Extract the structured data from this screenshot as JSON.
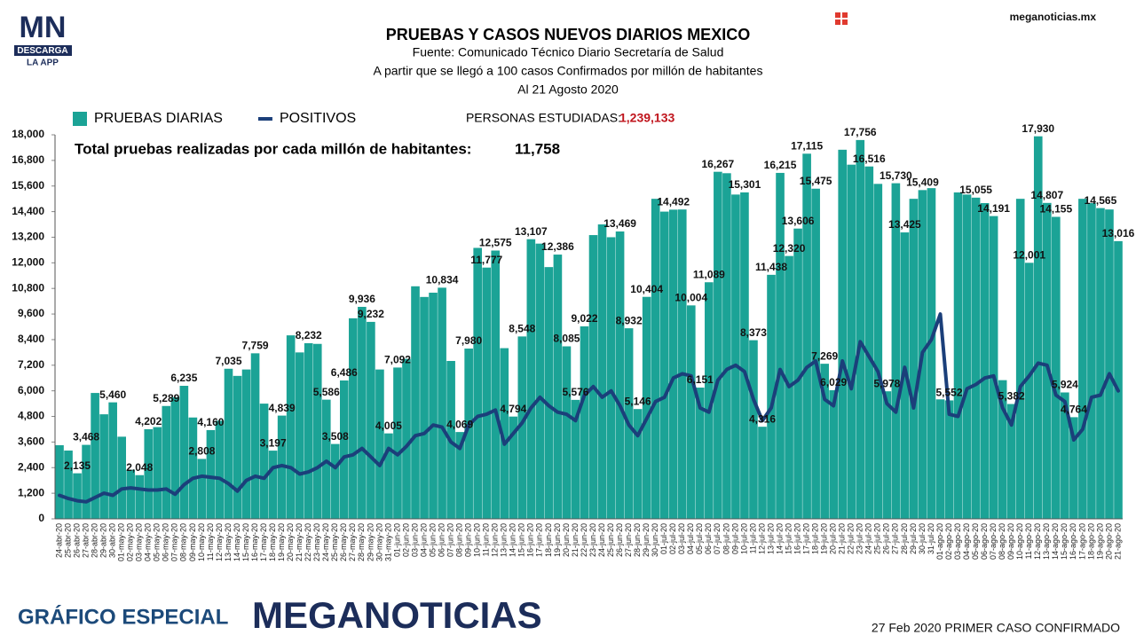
{
  "header": {
    "logo": "MN",
    "logo_sub": "DESCARGA",
    "logo_app": "LA APP",
    "site": "meganoticias.mx"
  },
  "footer": {
    "left": "GRÁFICO ESPECIAL",
    "brand": "MEGANOTICIAS",
    "note": "27 Feb 2020 PRIMER CASO CONFIRMADO"
  },
  "chart_data": {
    "type": "bar",
    "title": "PRUEBAS Y CASOS NUEVOS DIARIOS MEXICO",
    "subtitle": [
      "Fuente: Comunicado Técnico Diario Secretaría de Salud",
      "A partir que se llegó a 100 casos Confirmados por millón de habitantes",
      "Al 21 Agosto 2020"
    ],
    "annotations": {
      "studied_label": "PERSONAS ESTUDIADAS:",
      "studied_value": "1,239,133",
      "per_million_label": "Total pruebas realizadas por cada millón de habitantes:",
      "per_million_value": "11,758"
    },
    "categories": [
      "24-abr-20",
      "25-abr-20",
      "26-abr-20",
      "27-abr-20",
      "28-abr-20",
      "29-abr-20",
      "30-abr-20",
      "01-may-20",
      "02-may-20",
      "03-may-20",
      "04-may-20",
      "05-may-20",
      "06-may-20",
      "07-may-20",
      "08-may-20",
      "09-may-20",
      "10-may-20",
      "11-may-20",
      "12-may-20",
      "13-may-20",
      "14-may-20",
      "15-may-20",
      "16-may-20",
      "17-may-20",
      "18-may-20",
      "19-may-20",
      "20-may-20",
      "21-may-20",
      "22-may-20",
      "23-may-20",
      "24-may-20",
      "25-may-20",
      "26-may-20",
      "27-may-20",
      "28-may-20",
      "29-may-20",
      "30-may-20",
      "31-may-20",
      "01-jun-20",
      "02-jun-20",
      "03-jun-20",
      "04-jun-20",
      "05-jun-20",
      "06-jun-20",
      "07-jun-20",
      "08-jun-20",
      "09-jun-20",
      "10-jun-20",
      "11-jun-20",
      "12-jun-20",
      "13-jun-20",
      "14-jun-20",
      "15-jun-20",
      "16-jun-20",
      "17-jun-20",
      "18-jun-20",
      "19-jun-20",
      "20-jun-20",
      "21-jun-20",
      "22-jun-20",
      "23-jun-20",
      "24-jun-20",
      "25-jun-20",
      "26-jun-20",
      "27-jun-20",
      "28-jun-20",
      "29-jun-20",
      "30-jun-20",
      "01-jul-20",
      "02-jul-20",
      "03-jul-20",
      "04-jul-20",
      "05-jul-20",
      "06-jul-20",
      "07-jul-20",
      "08-jul-20",
      "09-jul-20",
      "10-jul-20",
      "11-jul-20",
      "12-jul-20",
      "13-jul-20",
      "14-jul-20",
      "15-jul-20",
      "16-jul-20",
      "17-jul-20",
      "18-jul-20",
      "19-jul-20",
      "20-jul-20",
      "21-jul-20",
      "22-jul-20",
      "23-jul-20",
      "24-jul-20",
      "25-jul-20",
      "26-jul-20",
      "27-jul-20",
      "28-jul-20",
      "29-jul-20",
      "30-jul-20",
      "31-jul-20",
      "01-ago-20",
      "02-ago-20",
      "03-ago-20",
      "04-ago-20",
      "05-ago-20",
      "06-ago-20",
      "07-ago-20",
      "08-ago-20",
      "09-ago-20",
      "10-ago-20",
      "11-ago-20",
      "12-ago-20",
      "13-ago-20",
      "14-ago-20",
      "15-ago-20",
      "16-ago-20",
      "17-ago-20",
      "18-ago-20",
      "19-ago-20",
      "20-ago-20",
      "21-ago-20"
    ],
    "series": [
      {
        "name": "PRUEBAS DIARIAS",
        "type": "bar",
        "color": "#1ba396",
        "values": [
          3450,
          3200,
          2135,
          3468,
          5900,
          4900,
          5460,
          3850,
          2300,
          2048,
          4202,
          4300,
          5289,
          5700,
          6235,
          4750,
          2808,
          4160,
          4600,
          7035,
          6700,
          7000,
          7759,
          5400,
          3197,
          4839,
          8600,
          7800,
          8232,
          8200,
          5586,
          3508,
          6486,
          9400,
          9936,
          9232,
          7000,
          4005,
          7092,
          7500,
          10900,
          10400,
          10600,
          10834,
          7400,
          4069,
          7980,
          12700,
          11777,
          12575,
          8000,
          4794,
          8548,
          13107,
          12900,
          11800,
          12386,
          8085,
          5576,
          9022,
          13300,
          13800,
          13200,
          13469,
          8932,
          5146,
          10404,
          15000,
          14400,
          14492,
          14500,
          10004,
          6151,
          11089,
          16267,
          16200,
          15200,
          15301,
          8373,
          4316,
          11438,
          16215,
          12320,
          13606,
          17115,
          15475,
          7269,
          6029,
          17300,
          16600,
          17756,
          16516,
          15700,
          5978,
          15730,
          13425,
          15000,
          15409,
          15500,
          5600,
          5552,
          15300,
          15200,
          15055,
          14800,
          14191,
          6500,
          5382,
          15000,
          12001,
          17930,
          14807,
          14155,
          5924,
          4764,
          15000,
          14800,
          14565,
          14500,
          13016
        ],
        "value_labels": [
          null,
          null,
          "2,135",
          "3,468",
          null,
          null,
          "5,460",
          null,
          null,
          "2,048",
          "4,202",
          null,
          "5,289",
          null,
          "6,235",
          null,
          "2,808",
          "4,160",
          null,
          "7,035",
          null,
          null,
          "7,759",
          null,
          "3,197",
          "4,839",
          null,
          null,
          "8,232",
          null,
          "5,586",
          "3,508",
          "6,486",
          null,
          "9,936",
          "9,232",
          null,
          "4,005",
          "7,092",
          null,
          null,
          null,
          null,
          "10,834",
          null,
          "4,069",
          "7,980",
          null,
          "11,777",
          "12,575",
          null,
          "4,794",
          "8,548",
          "13,107",
          null,
          null,
          "12,386",
          "8,085",
          "5,576",
          "9,022",
          null,
          null,
          null,
          "13,469",
          "8,932",
          "5,146",
          "10,404",
          null,
          null,
          "14,492",
          null,
          "10,004",
          "6,151",
          "11,089",
          "16,267",
          null,
          null,
          "15,301",
          "8,373",
          "4,316",
          "11,438",
          "16,215",
          "12,320",
          "13,606",
          "17,115",
          "15,475",
          "7,269",
          "6,029",
          null,
          null,
          "17,756",
          "16,516",
          null,
          "5,978",
          "15,730",
          "13,425",
          null,
          "15,409",
          null,
          null,
          "5,552",
          null,
          null,
          "15,055",
          null,
          "14,191",
          null,
          "5,382",
          null,
          "12,001",
          "17,930",
          "14,807",
          "14,155",
          "5,924",
          "4,764",
          null,
          null,
          "14,565",
          null,
          "13,016"
        ]
      },
      {
        "name": "POSITIVOS",
        "type": "line",
        "color": "#1b3f7a",
        "values": [
          1100,
          950,
          850,
          800,
          1000,
          1200,
          1100,
          1400,
          1450,
          1400,
          1350,
          1350,
          1400,
          1150,
          1600,
          1900,
          2000,
          1950,
          1900,
          1650,
          1300,
          1800,
          2000,
          1900,
          2400,
          2500,
          2400,
          2100,
          2200,
          2400,
          2700,
          2400,
          2900,
          3000,
          3300,
          2900,
          2500,
          3300,
          3000,
          3400,
          3900,
          4000,
          4400,
          4300,
          3600,
          3300,
          4400,
          4800,
          4900,
          5100,
          3500,
          4000,
          4500,
          5200,
          5700,
          5300,
          5000,
          4900,
          4600,
          5800,
          6200,
          5700,
          6000,
          5300,
          4400,
          3900,
          4700,
          5500,
          5700,
          6600,
          6800,
          6700,
          5200,
          5000,
          6500,
          7000,
          7200,
          6900,
          5600,
          4600,
          5200,
          7000,
          6200,
          6500,
          7100,
          7400,
          5600,
          5300,
          7400,
          6100,
          8300,
          7600,
          6900,
          5400,
          5000,
          7100,
          5200,
          7800,
          8400,
          9600,
          4900,
          4800,
          6100,
          6300,
          6600,
          6700,
          5200,
          4400,
          6200,
          6700,
          7300,
          7200,
          5800,
          5500,
          3700,
          4200,
          5700,
          5800,
          6800,
          6000
        ]
      }
    ],
    "ylim": [
      0,
      18000
    ],
    "yticks": [
      0,
      {
        "value": 1200,
        "label": "1,200"
      },
      {
        "value": 2400,
        "label": "2,400"
      },
      {
        "value": 3600,
        "label": "3,600"
      },
      {
        "value": 4800,
        "label": "4,800"
      },
      {
        "value": 6000,
        "label": "6,000"
      },
      {
        "value": 7200,
        "label": "7,200"
      },
      {
        "value": 8400,
        "label": "8,400"
      },
      {
        "value": 9600,
        "label": "9,600"
      },
      {
        "value": 10800,
        "label": "10,800"
      },
      {
        "value": 12000,
        "label": "12,000"
      },
      {
        "value": 13200,
        "label": "13,200"
      },
      {
        "value": 14400,
        "label": "14,400"
      },
      {
        "value": 15600,
        "label": "15,600"
      },
      {
        "value": 16800,
        "label": "16,800"
      },
      {
        "value": 18000,
        "label": "18,000"
      }
    ],
    "grid": false,
    "legend": "top-left"
  }
}
